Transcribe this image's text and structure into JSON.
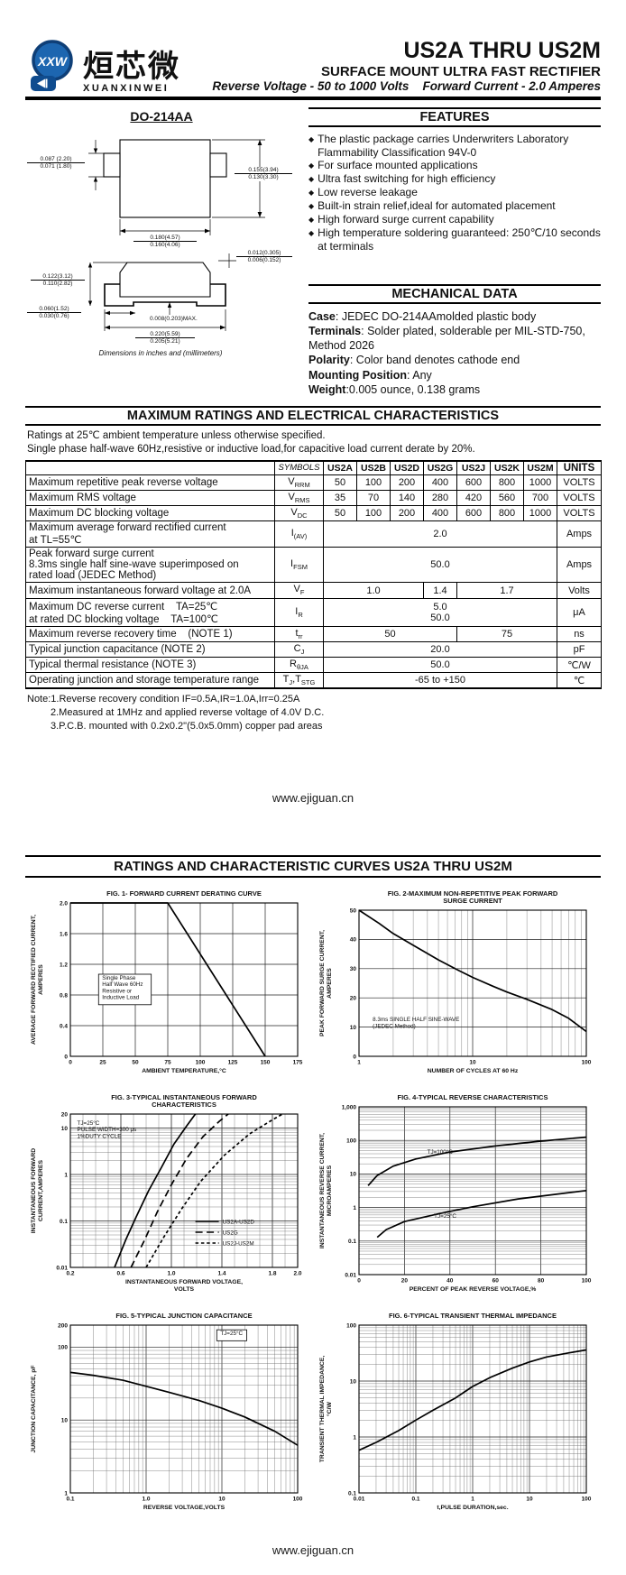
{
  "header": {
    "logo": {
      "xxw": "XXW",
      "chinese": "烜芯微",
      "romanized": "XUANXINWEI",
      "brand_blue": "#1d66b0",
      "brand_dark_blue": "#0f4c8f"
    },
    "title": "US2A THRU US2M",
    "subtitle": "SURFACE MOUNT ULTRA FAST RECTIFIER",
    "tagline": "Reverse Voltage - 50 to 1000 Volts    Forward Current - 2.0 Amperes"
  },
  "package": {
    "name": "DO-214AA",
    "caption": "Dimensions in inches and (millimeters)",
    "dims": {
      "tab_w_a": "0.087 (2.20)",
      "tab_w_b": "0.071 (1.80)",
      "body_h_a": "0.155(3.94)",
      "body_h_b": "0.130(3.30)",
      "body_w_a": "0.180(4.57)",
      "body_w_b": "0.160(4.06)",
      "lead_t_a": "0.012(0.305)",
      "lead_t_b": "0.006(0.152)",
      "height_a": "0.122(3.12)",
      "height_b": "0.110(2.82)",
      "foot_a": "0.060(1.52)",
      "foot_b": "0.030(0.76)",
      "standoff": "0.008(0.203)MAX.",
      "span_a": "0.220(5.59)",
      "span_b": "0.205(5.21)"
    }
  },
  "features": {
    "heading": "FEATURES",
    "bullet": "◆",
    "items": [
      "The plastic package carries Underwriters Laboratory Flammability Classification 94V-0",
      "For surface mounted applications",
      "Ultra fast switching for high efficiency",
      "Low reverse leakage",
      "Built-in strain relief,ideal for automated placement",
      "High forward surge current capability",
      "High temperature soldering guaranteed: 250℃/10 seconds at terminals"
    ]
  },
  "mech": {
    "heading": "MECHANICAL DATA",
    "items": [
      {
        "label": "Case",
        "text": ": JEDEC DO-214AAmolded plastic body"
      },
      {
        "label": "Terminals",
        "text": ": Solder plated, solderable per MIL-STD-750, Method 2026"
      },
      {
        "label": "Polarity",
        "text": ": Color band denotes cathode end"
      },
      {
        "label": "Mounting Position",
        "text": ": Any"
      },
      {
        "label": "Weight",
        "text": ":0.005 ounce, 0.138 grams"
      }
    ]
  },
  "ratings": {
    "heading": "MAXIMUM RATINGS AND ELECTRICAL CHARACTERISTICS",
    "intro1": "Ratings at 25℃ ambient temperature unless otherwise specified.",
    "intro2": "Single phase half-wave 60Hz,resistive or inductive load,for capacitive load current derate by 20%.",
    "head": {
      "sym": "SYMBOLS",
      "parts": [
        "US2A",
        "US2B",
        "US2D",
        "US2G",
        "US2J",
        "US2K",
        "US2M"
      ],
      "units": "UNITS"
    },
    "rows": [
      {
        "p": "Maximum repetitive peak reverse voltage",
        "sym": {
          "a": "V",
          "b": "RRM"
        },
        "vals": [
          "50",
          "100",
          "200",
          "400",
          "600",
          "800",
          "1000"
        ],
        "unit": "VOLTS"
      },
      {
        "p": "Maximum RMS voltage",
        "sym": {
          "a": "V",
          "b": "RMS"
        },
        "vals": [
          "35",
          "70",
          "140",
          "280",
          "420",
          "560",
          "700"
        ],
        "unit": "VOLTS"
      },
      {
        "p": "Maximum DC blocking voltage",
        "sym": {
          "a": "V",
          "b": "DC"
        },
        "vals": [
          "50",
          "100",
          "200",
          "400",
          "600",
          "800",
          "1000"
        ],
        "unit": "VOLTS"
      },
      {
        "p1": "Maximum average forward rectified current",
        "p2": "at TL=55℃",
        "sym": {
          "a": "I",
          "b": "(AV)"
        },
        "val": "2.0",
        "unit": "Amps"
      },
      {
        "p1": "Peak forward surge current",
        "p2": "8.3ms single half sine-wave superimposed on",
        "p3": "rated load (JEDEC Method)",
        "sym": {
          "a": "I",
          "b": "FSM"
        },
        "val": "50.0",
        "unit": "Amps"
      },
      {
        "p": "Maximum instantaneous forward voltage at 2.0A",
        "sym": {
          "a": "V",
          "b": "F"
        },
        "v1": "1.0",
        "v2": "1.4",
        "v3": "1.7",
        "unit": "Volts"
      },
      {
        "p1": "Maximum DC reverse current    TA=25℃",
        "p2": "at rated DC blocking voltage    TA=100℃",
        "sym": {
          "a": "I",
          "b": "R"
        },
        "v1": "5.0",
        "v2": "50.0",
        "unit": "μA"
      },
      {
        "p": "Maximum reverse recovery time    (NOTE 1)",
        "sym": {
          "a": "t",
          "b": "rr"
        },
        "v1": "50",
        "v2": "75",
        "unit": "ns"
      },
      {
        "p": "Typical junction capacitance (NOTE 2)",
        "sym": {
          "a": "C",
          "b": "J"
        },
        "val": "20.0",
        "unit": "pF"
      },
      {
        "p": "Typical thermal resistance (NOTE 3)",
        "sym": {
          "a": "R",
          "b": "θJA"
        },
        "val": "50.0",
        "unit": "℃/W"
      },
      {
        "p": "Operating junction and storage temperature range",
        "sym": {
          "a": "T",
          "b": "J",
          "c": ",T",
          "d": "STG"
        },
        "val": "-65 to +150",
        "unit": "℃"
      }
    ],
    "notes": [
      "Note:1.Reverse recovery condition IF=0.5A,IR=1.0A,Irr=0.25A",
      "2.Measured at 1MHz and applied reverse voltage of 4.0V D.C.",
      "3.P.C.B. mounted with 0.2x0.2\"(5.0x5.0mm) copper pad areas"
    ]
  },
  "site": {
    "url": "www.ejiguan.cn"
  },
  "curves_heading": "RATINGS AND CHARACTERISTIC CURVES US2A THRU US2M",
  "chart_data": [
    {
      "id": "fig1",
      "type": "line",
      "title": "FIG. 1- FORWARD CURRENT DERATING CURVE",
      "xlabel": "AMBIENT TEMPERATURE,°C",
      "ylabel": "AVERAGE FORWARD RECTIFIED CURRENT,\nAMPERES",
      "xlog": false,
      "ylog": false,
      "xlim": [
        0,
        175
      ],
      "ylim": [
        0,
        2.0
      ],
      "xticks": [
        {
          "v": 0,
          "l": "0"
        },
        {
          "v": 25,
          "l": "25"
        },
        {
          "v": 50,
          "l": "50"
        },
        {
          "v": 75,
          "l": "75"
        },
        {
          "v": 100,
          "l": "100"
        },
        {
          "v": 125,
          "l": "125"
        },
        {
          "v": 150,
          "l": "150"
        },
        {
          "v": 175,
          "l": "175"
        }
      ],
      "yticks": [
        {
          "v": 0,
          "l": "0"
        },
        {
          "v": 0.4,
          "l": "0.4"
        },
        {
          "v": 0.8,
          "l": "0.8"
        },
        {
          "v": 1.2,
          "l": "1.2"
        },
        {
          "v": 1.6,
          "l": "1.6"
        },
        {
          "v": 2.0,
          "l": "2.0"
        }
      ],
      "series": [
        {
          "name": "derating",
          "dash": "solid",
          "points": [
            [
              0,
              2.0
            ],
            [
              75,
              2.0
            ],
            [
              150,
              0
            ]
          ]
        }
      ],
      "annotations": [
        {
          "fx": 0.14,
          "fy": 0.5,
          "box": true,
          "lines": [
            "Single Phase",
            "Half Wave 60Hz",
            "Resistive or",
            "Inductive Load"
          ]
        }
      ]
    },
    {
      "id": "fig2",
      "type": "line",
      "title": "FIG. 2-MAXIMUM NON-REPETITIVE PEAK FORWARD\nSURGE CURRENT",
      "xlabel": "NUMBER OF CYCLES AT 60 Hz",
      "ylabel": "PEAK FORWARD SURGE CURRENT,\nAMPERES",
      "xlog": true,
      "ylog": false,
      "xlim": [
        1,
        100
      ],
      "ylim": [
        0,
        50
      ],
      "xticks": [
        {
          "v": 1,
          "l": "1"
        },
        {
          "v": 10,
          "l": "10"
        },
        {
          "v": 100,
          "l": "100"
        }
      ],
      "yticks": [
        {
          "v": 0,
          "l": "0"
        },
        {
          "v": 10,
          "l": "10"
        },
        {
          "v": 20,
          "l": "20"
        },
        {
          "v": 30,
          "l": "30"
        },
        {
          "v": 40,
          "l": "40"
        },
        {
          "v": 50,
          "l": "50"
        }
      ],
      "series": [
        {
          "name": "surge",
          "dash": "solid",
          "points": [
            [
              1,
              50
            ],
            [
              1.5,
              45.5
            ],
            [
              2,
              42
            ],
            [
              3,
              38
            ],
            [
              5,
              33
            ],
            [
              7,
              30
            ],
            [
              10,
              27
            ],
            [
              15,
              24
            ],
            [
              20,
              22
            ],
            [
              30,
              19.5
            ],
            [
              50,
              16
            ],
            [
              70,
              13
            ],
            [
              100,
              8.5
            ]
          ]
        }
      ],
      "annotations": [
        {
          "fx": 0.06,
          "fy": 0.76,
          "box": false,
          "lines": [
            "8.3ms SINGLE HALF SINE-WAVE",
            "(JEDEC Method)"
          ]
        }
      ]
    },
    {
      "id": "fig3",
      "type": "line",
      "title": "FIG. 3-TYPICAL INSTANTANEOUS FORWARD\nCHARACTERISTICS",
      "xlabel": "INSTANTANEOUS FORWARD VOLTAGE,\nVOLTS",
      "ylabel": "INSTANTANEOUS FORWARD\nCURRENT,AMPERES",
      "xlog": false,
      "ylog": true,
      "xminor": 0.1,
      "xlim": [
        0.2,
        2.0
      ],
      "ylim": [
        0.01,
        20
      ],
      "xticks": [
        {
          "v": 0.2,
          "l": "0.2"
        },
        {
          "v": 0.6,
          "l": "0.6"
        },
        {
          "v": 1.0,
          "l": "1.0"
        },
        {
          "v": 1.4,
          "l": "1.4"
        },
        {
          "v": 1.8,
          "l": "1.8"
        },
        {
          "v": 2.0,
          "l": "2.0"
        }
      ],
      "yticks": [
        {
          "v": 0.01,
          "l": "0.01"
        },
        {
          "v": 0.1,
          "l": "0.1"
        },
        {
          "v": 1,
          "l": "1"
        },
        {
          "v": 10,
          "l": "10"
        },
        {
          "v": 20,
          "l": "20"
        }
      ],
      "series": [
        {
          "name": "US2A-US2D",
          "dash": "solid",
          "points": [
            [
              0.55,
              0.01
            ],
            [
              0.64,
              0.04
            ],
            [
              0.72,
              0.12
            ],
            [
              0.82,
              0.45
            ],
            [
              0.92,
              1.4
            ],
            [
              1.02,
              4.5
            ],
            [
              1.12,
              11
            ],
            [
              1.19,
              20
            ]
          ]
        },
        {
          "name": "US2G",
          "dash": "long",
          "points": [
            [
              0.68,
              0.01
            ],
            [
              0.79,
              0.04
            ],
            [
              0.89,
              0.16
            ],
            [
              1.0,
              0.6
            ],
            [
              1.12,
              2.2
            ],
            [
              1.25,
              6.5
            ],
            [
              1.38,
              14
            ],
            [
              1.45,
              20
            ]
          ]
        },
        {
          "name": "US2J-US2M",
          "dash": "short",
          "points": [
            [
              0.8,
              0.01
            ],
            [
              0.94,
              0.045
            ],
            [
              1.08,
              0.18
            ],
            [
              1.23,
              0.7
            ],
            [
              1.42,
              2.6
            ],
            [
              1.62,
              7.5
            ],
            [
              1.8,
              15
            ],
            [
              1.88,
              20
            ]
          ]
        }
      ],
      "annotations": [
        {
          "fx": 0.03,
          "fy": 0.07,
          "box": false,
          "lines": [
            "TJ=25°C",
            "PULSE WIDTH=300 μs",
            "1%DUTY CYCLE"
          ]
        }
      ],
      "legend": {
        "fx": 0.55,
        "fy": 0.7,
        "entries": [
          {
            "label": "US2A-US2D",
            "dash": "solid"
          },
          {
            "label": "US2G",
            "dash": "long"
          },
          {
            "label": "US2J-US2M",
            "dash": "short"
          }
        ]
      }
    },
    {
      "id": "fig4",
      "type": "line",
      "title": "FIG. 4-TYPICAL REVERSE CHARACTERISTICS",
      "xlabel": "PERCENT OF PEAK REVERSE VOLTAGE,%",
      "ylabel": "INSTANTANEOUS REVERSE CURRENT,\nMICROAMPERES",
      "xlog": false,
      "ylog": true,
      "xlim": [
        0,
        100
      ],
      "ylim": [
        0.01,
        1000
      ],
      "xticks": [
        {
          "v": 0,
          "l": "0"
        },
        {
          "v": 20,
          "l": "20"
        },
        {
          "v": 40,
          "l": "40"
        },
        {
          "v": 60,
          "l": "60"
        },
        {
          "v": 80,
          "l": "80"
        },
        {
          "v": 100,
          "l": "100"
        }
      ],
      "yticks": [
        {
          "v": 0.01,
          "l": "0.01"
        },
        {
          "v": 0.1,
          "l": "0.1"
        },
        {
          "v": 1,
          "l": "1"
        },
        {
          "v": 10,
          "l": "10"
        },
        {
          "v": 100,
          "l": "100"
        },
        {
          "v": 1000,
          "l": "1,000"
        }
      ],
      "series": [
        {
          "name": "TJ=100°C",
          "dash": "solid",
          "points": [
            [
              4,
              4.5
            ],
            [
              8,
              9
            ],
            [
              15,
              17
            ],
            [
              25,
              28
            ],
            [
              40,
              45
            ],
            [
              60,
              68
            ],
            [
              80,
              95
            ],
            [
              100,
              125
            ]
          ]
        },
        {
          "name": "TJ=25°C",
          "dash": "solid",
          "points": [
            [
              8,
              0.13
            ],
            [
              12,
              0.22
            ],
            [
              20,
              0.38
            ],
            [
              35,
              0.65
            ],
            [
              50,
              1.05
            ],
            [
              70,
              1.8
            ],
            [
              100,
              3.2
            ]
          ]
        }
      ],
      "annotations": [
        {
          "fx": 0.3,
          "fy": 0.28,
          "box": false,
          "lines": [
            "TJ=100°C"
          ]
        },
        {
          "fx": 0.33,
          "fy": 0.66,
          "box": false,
          "lines": [
            "TJ=25°C"
          ]
        }
      ]
    },
    {
      "id": "fig5",
      "type": "line",
      "title": "FIG. 5-TYPICAL JUNCTION CAPACITANCE",
      "xlabel": "REVERSE VOLTAGE,VOLTS",
      "ylabel": "JUNCTION CAPACITANCE, pF",
      "xlog": true,
      "ylog": true,
      "xlim": [
        0.1,
        100
      ],
      "ylim": [
        1,
        200
      ],
      "xticks": [
        {
          "v": 0.1,
          "l": "0.1"
        },
        {
          "v": 1,
          "l": "1.0"
        },
        {
          "v": 10,
          "l": "10"
        },
        {
          "v": 100,
          "l": "100"
        }
      ],
      "yticks": [
        {
          "v": 1,
          "l": "1"
        },
        {
          "v": 10,
          "l": "10"
        },
        {
          "v": 100,
          "l": "100"
        },
        {
          "v": 200,
          "l": "200"
        }
      ],
      "series": [
        {
          "name": "Cj",
          "dash": "solid",
          "points": [
            [
              0.1,
              45
            ],
            [
              0.2,
              41
            ],
            [
              0.5,
              35
            ],
            [
              1,
              29
            ],
            [
              2,
              24
            ],
            [
              5,
              18.5
            ],
            [
              10,
              14.5
            ],
            [
              20,
              11
            ],
            [
              50,
              7
            ],
            [
              100,
              4.5
            ]
          ]
        }
      ],
      "annotations": [
        {
          "fx": 0.66,
          "fy": 0.06,
          "box": true,
          "lines": [
            "TJ=25°C"
          ]
        }
      ]
    },
    {
      "id": "fig6",
      "type": "line",
      "title": "FIG. 6-TYPICAL TRANSIENT THERMAL IMPEDANCE",
      "xlabel": "t,PULSE DURATION,sec.",
      "ylabel": "TRANSIENT THERMAL IMPEDANCE,\n°C/W",
      "xlog": true,
      "ylog": true,
      "xlim": [
        0.01,
        100
      ],
      "ylim": [
        0.1,
        100
      ],
      "xticks": [
        {
          "v": 0.01,
          "l": "0.01"
        },
        {
          "v": 0.1,
          "l": "0.1"
        },
        {
          "v": 1,
          "l": "1"
        },
        {
          "v": 10,
          "l": "10"
        },
        {
          "v": 100,
          "l": "100"
        }
      ],
      "yticks": [
        {
          "v": 0.1,
          "l": "0.1"
        },
        {
          "v": 1,
          "l": "1"
        },
        {
          "v": 10,
          "l": "10"
        },
        {
          "v": 100,
          "l": "100"
        }
      ],
      "series": [
        {
          "name": "Zth",
          "dash": "solid",
          "points": [
            [
              0.01,
              0.58
            ],
            [
              0.02,
              0.8
            ],
            [
              0.05,
              1.3
            ],
            [
              0.1,
              2.0
            ],
            [
              0.2,
              3.0
            ],
            [
              0.5,
              5.0
            ],
            [
              1,
              8
            ],
            [
              2,
              11.5
            ],
            [
              5,
              17
            ],
            [
              10,
              22
            ],
            [
              20,
              27
            ],
            [
              50,
              32
            ],
            [
              100,
              36
            ]
          ]
        }
      ]
    }
  ]
}
